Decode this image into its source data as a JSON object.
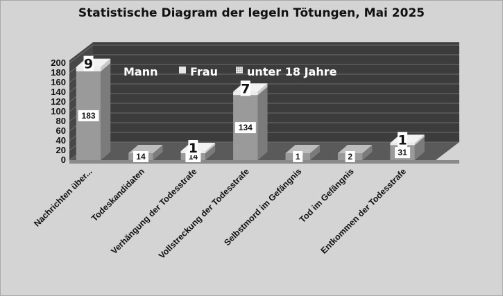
{
  "chart_data": {
    "type": "bar",
    "title": "Statistische Diagram der legeln Tötungen, Mai 2025",
    "categories": [
      "Nachrichten über...",
      "Todeskandidaten",
      "Verhängung der Todesstrafe",
      "Vollstreckung der Todesstrafe",
      "Selbstmord im Gefängnis",
      "Tod im Gefängnis",
      "Entkommen der Todesstrafe"
    ],
    "series": [
      {
        "name": "Mann",
        "values": [
          183,
          14,
          14,
          134,
          1,
          2,
          31
        ],
        "labels": [
          "183",
          "14",
          "14",
          "134",
          "1",
          "2",
          "31"
        ]
      },
      {
        "name": "Frau",
        "values": [
          9,
          0,
          1,
          7,
          0,
          0,
          1
        ],
        "labels": [
          "9",
          "",
          "1",
          "7",
          "",
          "",
          "1"
        ]
      },
      {
        "name": "unter 18 Jahre",
        "values": [
          0,
          0,
          0,
          0,
          0,
          0,
          0
        ],
        "labels": [
          "",
          "",
          "",
          "",
          "",
          "",
          ""
        ]
      }
    ],
    "stacked": true,
    "ylim": [
      0,
      200
    ],
    "yticks": [
      "0",
      "20",
      "40",
      "60",
      "80",
      "100",
      "120",
      "140",
      "160",
      "180",
      "200"
    ],
    "grid": true,
    "legend_position": "top",
    "colors": {
      "bar_front": "#9a9a9a",
      "bar_side": "#7b7b7b",
      "bar_top": "#bdbdbd",
      "stack_front": "#ececec",
      "back_wall": "#3c3c3c",
      "grid": "#6e6e6e",
      "floor": "#5a5a5a",
      "background": "#d4d4d4",
      "legend_text": "#ffffff"
    }
  }
}
